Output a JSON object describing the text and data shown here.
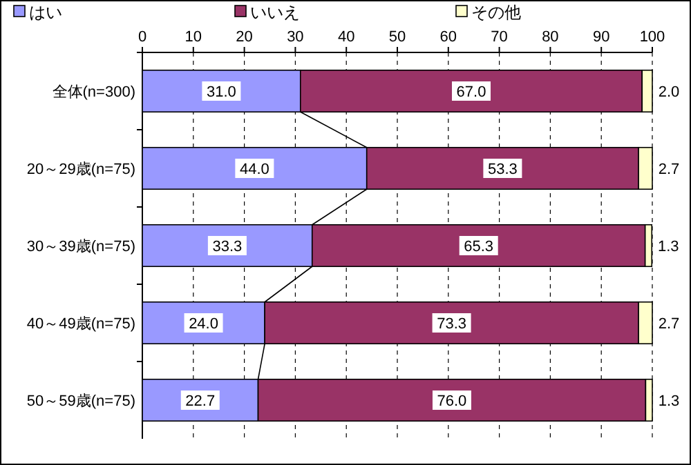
{
  "chart_data": {
    "type": "bar",
    "orientation": "horizontal",
    "stacked": true,
    "categories": [
      "全体(n=300)",
      "20～29歳(n=75)",
      "30～39歳(n=75)",
      "40～49歳(n=75)",
      "50～59歳(n=75)"
    ],
    "series": [
      {
        "name": "はい",
        "color": "#9999ff",
        "values": [
          31.0,
          44.0,
          33.3,
          24.0,
          22.7
        ],
        "value_labels": [
          "31.0",
          "44.0",
          "33.3",
          "24.0",
          "22.7"
        ]
      },
      {
        "name": "いいえ",
        "color": "#993366",
        "values": [
          67.0,
          53.3,
          65.3,
          73.3,
          76.0
        ],
        "value_labels": [
          "67.0",
          "53.3",
          "65.3",
          "73.3",
          "76.0"
        ]
      },
      {
        "name": "その他",
        "color": "#ffffcc",
        "values": [
          2.0,
          2.7,
          1.3,
          2.7,
          1.3
        ],
        "value_labels": [
          "2.0",
          "2.7",
          "1.3",
          "2.7",
          "1.3"
        ]
      }
    ],
    "xlim": [
      0,
      100
    ],
    "xticks": [
      0,
      10,
      20,
      30,
      40,
      50,
      60,
      70,
      80,
      90,
      100
    ],
    "grid": "x",
    "legend": "top"
  }
}
